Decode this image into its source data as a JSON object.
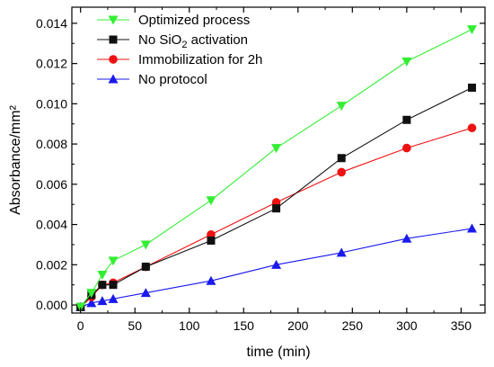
{
  "chart_data": {
    "type": "line",
    "title": "",
    "xlabel": "time (min)",
    "ylabel": "Absorbance/mm²",
    "xlim": [
      -8,
      372
    ],
    "ylim": [
      -0.0004,
      0.0148
    ],
    "xticks": [
      0,
      50,
      100,
      150,
      200,
      250,
      300,
      350
    ],
    "yticks": [
      0.0,
      0.002,
      0.004,
      0.006,
      0.008,
      0.01,
      0.012,
      0.014
    ],
    "ytick_labels": [
      "0.000",
      "0.002",
      "0.004",
      "0.006",
      "0.008",
      "0.010",
      "0.012",
      "0.014"
    ],
    "grid": false,
    "legend_position": "top-left",
    "series": [
      {
        "name": "Optimized process",
        "name_parts": [
          "Optimized process"
        ],
        "color": "#33ee33",
        "marker": "triangle-down",
        "x": [
          0,
          10,
          20,
          30,
          60,
          120,
          180,
          240,
          300,
          360
        ],
        "y": [
          -0.0001,
          0.0006,
          0.0015,
          0.0022,
          0.003,
          0.0052,
          0.0078,
          0.0099,
          0.0121,
          0.0137
        ]
      },
      {
        "name": "No SiO2 activation",
        "name_parts": [
          "No SiO",
          "2",
          " activation"
        ],
        "color": "#111111",
        "marker": "square",
        "x": [
          0,
          10,
          20,
          30,
          60,
          120,
          180,
          240,
          300,
          360
        ],
        "y": [
          -0.0001,
          0.0005,
          0.001,
          0.001,
          0.0019,
          0.0032,
          0.0048,
          0.0073,
          0.0092,
          0.0108
        ]
      },
      {
        "name": "Immobilization for 2h",
        "name_parts": [
          "Immobilization for 2h"
        ],
        "color": "#ee1111",
        "marker": "circle",
        "x": [
          0,
          10,
          20,
          30,
          60,
          120,
          180,
          240,
          300,
          360
        ],
        "y": [
          -0.0001,
          0.0004,
          0.001,
          0.0011,
          0.0019,
          0.0035,
          0.0051,
          0.0066,
          0.0078,
          0.0088
        ]
      },
      {
        "name": "No protocol",
        "name_parts": [
          "No protocol"
        ],
        "color": "#1a1aee",
        "marker": "triangle-up",
        "x": [
          0,
          10,
          20,
          30,
          60,
          120,
          180,
          240,
          300,
          360
        ],
        "y": [
          -0.0001,
          0.0001,
          0.0002,
          0.0003,
          0.0006,
          0.0012,
          0.002,
          0.0026,
          0.0033,
          0.0038
        ]
      }
    ]
  }
}
